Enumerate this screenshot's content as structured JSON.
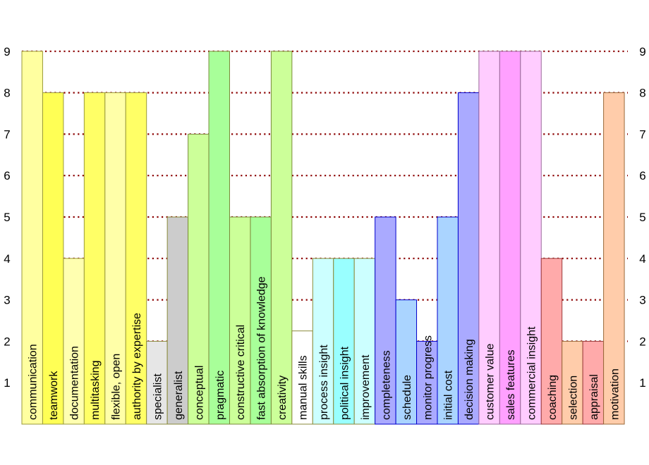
{
  "chart_data": {
    "type": "bar",
    "ylim": [
      0,
      10
    ],
    "y_ticks": [
      1,
      2,
      3,
      4,
      5,
      6,
      7,
      8,
      9
    ],
    "grid": "dotted horizontal lines at 2, 3, 4, 5, 6, 7, 8, 9",
    "bars": [
      {
        "label": "communication",
        "value": 9,
        "fill": "#ffffa0",
        "stroke": "#9a9a3a"
      },
      {
        "label": "teamwork",
        "value": 8,
        "fill": "#ffff55",
        "stroke": "#9a9a3a"
      },
      {
        "label": "documentation",
        "value": 4,
        "fill": "#ffffb0",
        "stroke": "#9a9a3a"
      },
      {
        "label": "multitasking",
        "value": 8,
        "fill": "#ffff66",
        "stroke": "#9a9a3a"
      },
      {
        "label": "flexible, open",
        "value": 8,
        "fill": "#ffffa8",
        "stroke": "#9a9a3a"
      },
      {
        "label": "authority by expertise",
        "value": 8,
        "fill": "#ffff66",
        "stroke": "#9a9a3a"
      },
      {
        "label": "specialist",
        "value": 2,
        "fill": "#e6e6e6",
        "stroke": "#8a8a3a"
      },
      {
        "label": "generalist",
        "value": 5,
        "fill": "#cccccc",
        "stroke": "#8a8a3a"
      },
      {
        "label": "conceptual",
        "value": 7,
        "fill": "#ccff99",
        "stroke": "#7a8a3a"
      },
      {
        "label": "pragmatic",
        "value": 9,
        "fill": "#a8ff99",
        "stroke": "#7a8a3a"
      },
      {
        "label": "constructive critical",
        "value": 5,
        "fill": "#ccff99",
        "stroke": "#7a8a3a"
      },
      {
        "label": "fast absorption of knowledge",
        "value": 5,
        "fill": "#a8ff99",
        "stroke": "#7a8a3a"
      },
      {
        "label": "creativity",
        "value": 9,
        "fill": "#ccff99",
        "stroke": "#7a8a3a"
      },
      {
        "label": "manual skills",
        "value": 2.25,
        "fill": "#ffffff",
        "stroke": "#8a8a3a"
      },
      {
        "label": "process insight",
        "value": 4,
        "fill": "#ccffff",
        "stroke": "#8a8a3a"
      },
      {
        "label": "political insight",
        "value": 4,
        "fill": "#99ffff",
        "stroke": "#8a8a3a"
      },
      {
        "label": "improvement",
        "value": 4,
        "fill": "#ccffff",
        "stroke": "#8a8a3a"
      },
      {
        "label": "completeness",
        "value": 5,
        "fill": "#aaaaff",
        "stroke": "#0000cc"
      },
      {
        "label": "schedule",
        "value": 3,
        "fill": "#aad4ff",
        "stroke": "#0000cc"
      },
      {
        "label": "monitor progress",
        "value": 2,
        "fill": "#aaaaff",
        "stroke": "#0000cc"
      },
      {
        "label": "initial cost",
        "value": 5,
        "fill": "#aad4ff",
        "stroke": "#0000cc"
      },
      {
        "label": "decision making",
        "value": 8,
        "fill": "#aaaaff",
        "stroke": "#0000cc"
      },
      {
        "label": "customer value",
        "value": 9,
        "fill": "#ffccff",
        "stroke": "#9a6a9a"
      },
      {
        "label": "sales features",
        "value": 9,
        "fill": "#ffa0ff",
        "stroke": "#9a6a9a"
      },
      {
        "label": "commercial insight",
        "value": 9,
        "fill": "#ffccff",
        "stroke": "#9a6a9a"
      },
      {
        "label": "coaching",
        "value": 4,
        "fill": "#ffaaaa",
        "stroke": "#9a3a3a"
      },
      {
        "label": "selection",
        "value": 2,
        "fill": "#ffccaa",
        "stroke": "#9a6a3a"
      },
      {
        "label": "appraisal",
        "value": 2,
        "fill": "#ffaaaa",
        "stroke": "#9a3a3a"
      },
      {
        "label": "motivation",
        "value": 8,
        "fill": "#ffccaa",
        "stroke": "#9a6a3a"
      }
    ]
  },
  "colors": {
    "grid": "#8b0000",
    "text": "#000000",
    "background": "#ffffff"
  }
}
